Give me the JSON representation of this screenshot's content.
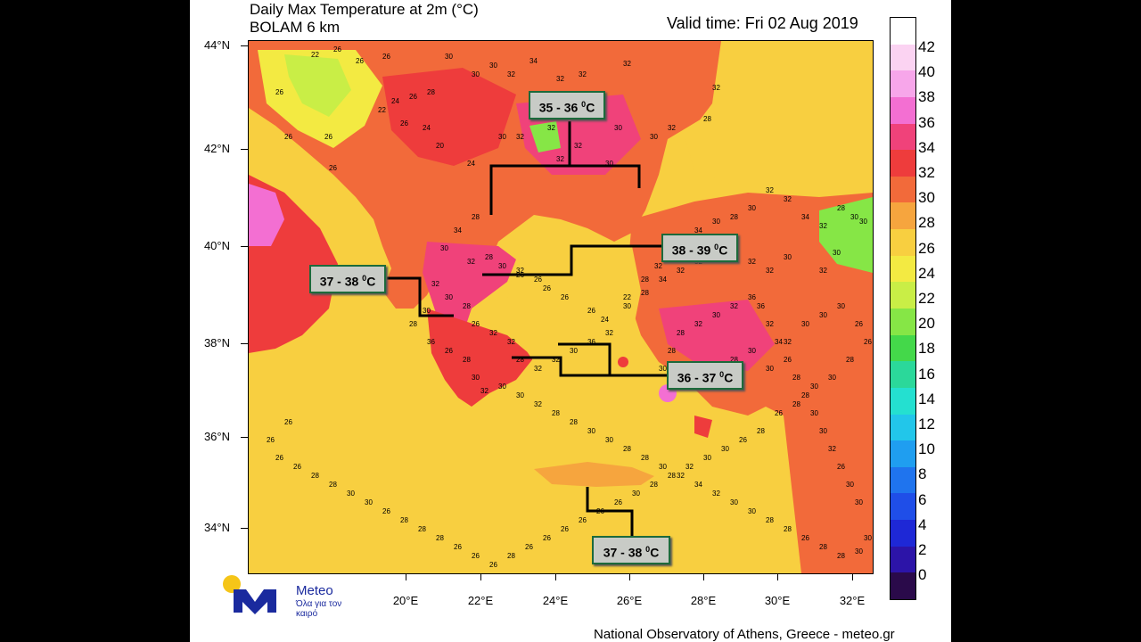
{
  "title_line1": "Daily Max Temperature at 2m (°C)",
  "title_line2": "BOLAM 6 km",
  "valid_time": "Valid time: Fri 02 Aug 2019",
  "y_axis_labels": [
    "44°N",
    "42°N",
    "40°N",
    "38°N",
    "36°N",
    "34°N"
  ],
  "x_axis_labels": [
    "20°E",
    "22°E",
    "24°E",
    "26°E",
    "28°E",
    "30°E",
    "32°E"
  ],
  "colorbar": {
    "labels": [
      "42",
      "40",
      "38",
      "36",
      "34",
      "32",
      "30",
      "28",
      "26",
      "24",
      "22",
      "20",
      "18",
      "16",
      "14",
      "12",
      "10",
      "8",
      "6",
      "4",
      "2",
      "0"
    ],
    "colors": [
      "#ffffff",
      "#fbd3f2",
      "#f7a6ea",
      "#f36fd2",
      "#f0427a",
      "#ee3c3c",
      "#f26a3a",
      "#f6a53e",
      "#f8cf40",
      "#f3ea42",
      "#c9ee46",
      "#86e646",
      "#44d84a",
      "#2bd89a",
      "#24e0d0",
      "#22c6ea",
      "#1f9ef0",
      "#1f74ee",
      "#1f4ee8",
      "#1e28d6",
      "#2c14a8",
      "#2a0a4a"
    ]
  },
  "annotations": [
    {
      "label": "35 - 36 ⁰C",
      "text": "35 - 36",
      "unit": "0C"
    },
    {
      "label": "38 - 39 ⁰C",
      "text": "38 - 39",
      "unit": "0C"
    },
    {
      "label": "37 - 38 ⁰C",
      "text": "37 - 38",
      "unit": "0C"
    },
    {
      "label": "36 - 37 ⁰C",
      "text": "36 - 37",
      "unit": "0C"
    },
    {
      "label": "37 - 38 ⁰C",
      "text": "37 - 38",
      "unit": "0C"
    }
  ],
  "logo": {
    "name": "Meteo",
    "tagline": "Όλα για τον καιρό"
  },
  "credit": "National Observatory of Athens, Greece - meteo.gr",
  "map_numbers": [
    "22",
    "26",
    "26",
    "26",
    "22",
    "24",
    "26",
    "26",
    "28",
    "30",
    "30",
    "30",
    "34",
    "32",
    "32",
    "32",
    "32",
    "26",
    "26",
    "26",
    "26",
    "24",
    "20",
    "24",
    "30",
    "32",
    "32",
    "32",
    "32",
    "30",
    "30",
    "30",
    "32",
    "28",
    "32",
    "28",
    "34",
    "30",
    "32",
    "28",
    "30",
    "32",
    "26",
    "26",
    "26",
    "26",
    "26",
    "24",
    "22",
    "28",
    "32",
    "34",
    "34",
    "30",
    "28",
    "30",
    "32",
    "32",
    "34",
    "32",
    "28",
    "30",
    "30",
    "30",
    "32",
    "30",
    "32",
    "32",
    "36",
    "30",
    "32",
    "32",
    "34",
    "28",
    "30",
    "32",
    "36",
    "30",
    "32",
    "32",
    "28",
    "32",
    "32",
    "26",
    "28",
    "30",
    "32",
    "30",
    "28",
    "36",
    "26",
    "28",
    "30",
    "32",
    "30",
    "30",
    "32",
    "28",
    "28",
    "30",
    "30",
    "28",
    "28",
    "30",
    "32",
    "34",
    "32",
    "30",
    "30",
    "28",
    "28",
    "26",
    "28",
    "28",
    "30",
    "30",
    "30",
    "30",
    "26",
    "32",
    "30",
    "30",
    "28",
    "28",
    "26",
    "34",
    "32",
    "36",
    "36",
    "32",
    "30",
    "32",
    "28",
    "28",
    "30",
    "32",
    "30",
    "28",
    "28",
    "30",
    "30",
    "32",
    "30",
    "30",
    "30",
    "26",
    "26",
    "28",
    "30",
    "30",
    "28",
    "26",
    "28",
    "26",
    "30",
    "30",
    "32",
    "28",
    "28",
    "30",
    "26",
    "26",
    "26",
    "26",
    "26",
    "26",
    "28",
    "26",
    "26",
    "26",
    "28",
    "28",
    "28",
    "26",
    "30",
    "30",
    "28",
    "28",
    "26",
    "26",
    "26",
    "26"
  ]
}
